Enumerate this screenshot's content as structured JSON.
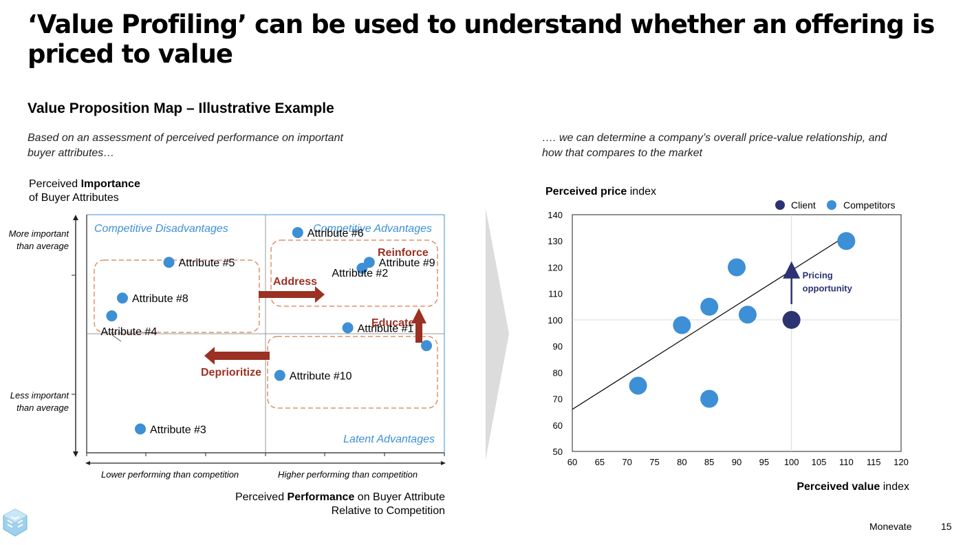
{
  "title": "‘Value Profiling’ can be used to understand whether an offering is priced to value",
  "subtitle": "Value Proposition Map – Illustrative Example",
  "left_lead": "Based on an assessment of perceived performance on important buyer attributes…",
  "right_lead": "…. we can determine a company’s overall price-value relationship, and how that compares to the market",
  "importance_axis": {
    "label_prefix": "Perceived ",
    "label_bold": "Importance",
    "label_line2": "of Buyer Attributes",
    "more": "More important than average",
    "less": "Less important than average"
  },
  "performance_axis": {
    "lower": "Lower performing than competition",
    "higher": "Higher performing than competition",
    "label_prefix": "Perceived ",
    "label_bold": "Performance",
    "label_suffix": " on Buyer Attribute",
    "label_line2": "Relative to Competition"
  },
  "colors": {
    "point": "#3d8fd6",
    "client": "#2b3372",
    "quadrant_text": "#3d8fd6",
    "action": "#9b3122",
    "dashed": "#e08f6a",
    "frame": "#3d8fd6"
  },
  "quadrant_map": {
    "type": "scatter",
    "quadrants": {
      "top_left": "Competitive Disadvantages",
      "top_right": "Competitive Advantages",
      "bottom_right": "Latent Advantages"
    },
    "actions": [
      "Reinforce",
      "Address",
      "Educate",
      "Deprioritize"
    ],
    "attributes": [
      {
        "name": "Attribute #5",
        "performance": 2.3,
        "importance": 3.2
      },
      {
        "name": "Attribute #6",
        "performance": 5.9,
        "importance": 3.7
      },
      {
        "name": "Attribute #9",
        "performance": 7.9,
        "importance": 3.2
      },
      {
        "name": "Attribute #2",
        "performance": 7.7,
        "importance": 3.1
      },
      {
        "name": "Attribute #8",
        "performance": 1.0,
        "importance": 2.6
      },
      {
        "name": "Attribute #4",
        "performance": 0.7,
        "importance": 2.3
      },
      {
        "name": "Attribute #1",
        "performance": 7.3,
        "importance": 2.1
      },
      {
        "name": "Attribute #10",
        "performance": 5.4,
        "importance": 1.3
      },
      {
        "name": "Attribute #3",
        "performance": 1.5,
        "importance": 0.4
      },
      {
        "name": "",
        "performance": 9.5,
        "importance": 1.8
      }
    ]
  },
  "chart_data": {
    "type": "scatter",
    "title": "",
    "xlabel_bold": "Perceived value",
    "xlabel_rest": " index",
    "ylabel_bold": "Perceived price",
    "ylabel_rest": " index",
    "xlim": [
      60,
      120
    ],
    "ylim": [
      50,
      140
    ],
    "xticks": [
      60,
      65,
      70,
      75,
      80,
      85,
      90,
      95,
      100,
      105,
      110,
      115,
      120
    ],
    "yticks": [
      50,
      60,
      70,
      80,
      90,
      100,
      110,
      120,
      130,
      140
    ],
    "legend": {
      "position": "top-right",
      "entries": [
        "Client",
        "Competitors"
      ]
    },
    "series": [
      {
        "name": "Client",
        "points": [
          [
            100,
            100
          ]
        ]
      },
      {
        "name": "Competitors",
        "points": [
          [
            72,
            75
          ],
          [
            80,
            98
          ],
          [
            85,
            105
          ],
          [
            85,
            70
          ],
          [
            90,
            120
          ],
          [
            92,
            102
          ],
          [
            110,
            130
          ]
        ]
      }
    ],
    "trendline": {
      "from": [
        60,
        66
      ],
      "to": [
        110,
        132
      ]
    },
    "reference_lines": {
      "x": 100,
      "y": 100
    },
    "annotation": {
      "text_line1": "Pricing",
      "text_line2": "opportunity",
      "from": [
        100,
        106
      ],
      "to": [
        100,
        119
      ]
    }
  },
  "footer": {
    "brand": "Monevate",
    "page": "15"
  }
}
